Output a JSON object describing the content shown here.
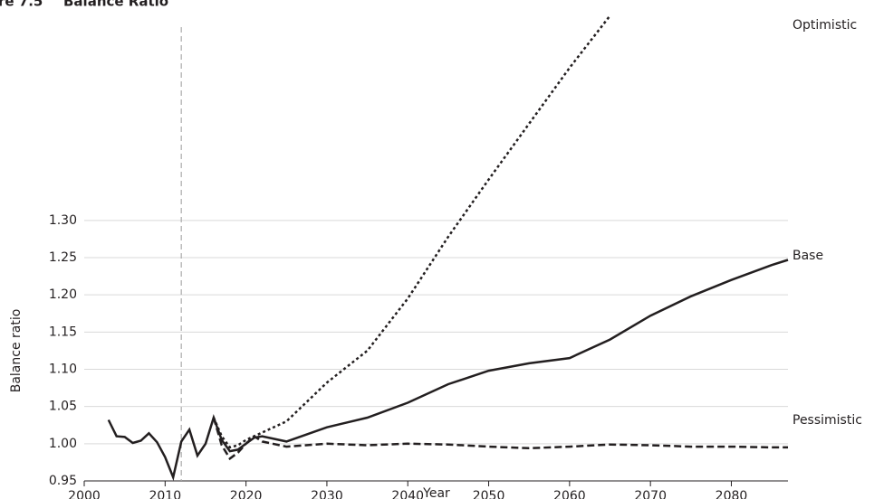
{
  "chart_data": {
    "type": "line",
    "figure_label": "re 7.5",
    "title": "Balance Ratio",
    "xlabel": "Year",
    "ylabel": "Balance ratio",
    "x": [
      2003,
      2004,
      2005,
      2006,
      2007,
      2008,
      2009,
      2010,
      2011,
      2012,
      2013,
      2014,
      2015,
      2016,
      2017,
      2018,
      2019,
      2020,
      2021,
      2022,
      2025,
      2030,
      2035,
      2040,
      2045,
      2050,
      2055,
      2060,
      2065,
      2070,
      2075,
      2080,
      2085,
      2087
    ],
    "series": [
      {
        "name": "Optimistic",
        "color": "#231f20",
        "dash": "3,3",
        "values": [
          null,
          null,
          null,
          null,
          null,
          null,
          null,
          null,
          null,
          null,
          null,
          null,
          null,
          1.035,
          1.01,
          0.995,
          0.998,
          1.005,
          1.01,
          1.015,
          1.03,
          1.082,
          1.125,
          1.195,
          1.278,
          1.355,
          1.43,
          1.505,
          1.575,
          null,
          null,
          null,
          null,
          null
        ]
      },
      {
        "name": "Base",
        "color": "#231f20",
        "dash": "",
        "values": [
          1.032,
          1.01,
          1.009,
          1.001,
          1.004,
          1.014,
          1.002,
          0.982,
          0.955,
          1.003,
          1.019,
          0.984,
          1.0,
          1.035,
          1.005,
          0.99,
          0.992,
          1.0,
          1.008,
          1.01,
          1.003,
          1.022,
          1.035,
          1.055,
          1.08,
          1.098,
          1.108,
          1.115,
          1.14,
          1.172,
          1.198,
          1.22,
          1.24,
          1.247
        ]
      },
      {
        "name": "Pessimistic",
        "color": "#231f20",
        "dash": "8,4",
        "values": [
          null,
          null,
          null,
          null,
          null,
          null,
          null,
          null,
          null,
          null,
          null,
          null,
          null,
          1.035,
          0.998,
          0.98,
          0.988,
          1.0,
          1.01,
          1.003,
          0.996,
          1.0,
          0.998,
          1.0,
          0.999,
          0.996,
          0.994,
          0.996,
          0.999,
          0.998,
          0.996,
          0.996,
          0.995,
          0.995
        ]
      }
    ],
    "xlim": [
      2000,
      2087
    ],
    "xticks": [
      2000,
      2010,
      2020,
      2030,
      2040,
      2050,
      2060,
      2070,
      2080
    ],
    "ylim": [
      0.95,
      1.584
    ],
    "yticks": [
      0.95,
      {
        "value": 1.0,
        "label": "1.00"
      },
      1.05,
      {
        "value": 1.1,
        "label": "1.10"
      },
      1.15,
      {
        "value": 1.2,
        "label": "1.20"
      },
      1.25,
      {
        "value": 1.3,
        "label": "1.30"
      }
    ],
    "grid": true,
    "vline": 2012
  }
}
